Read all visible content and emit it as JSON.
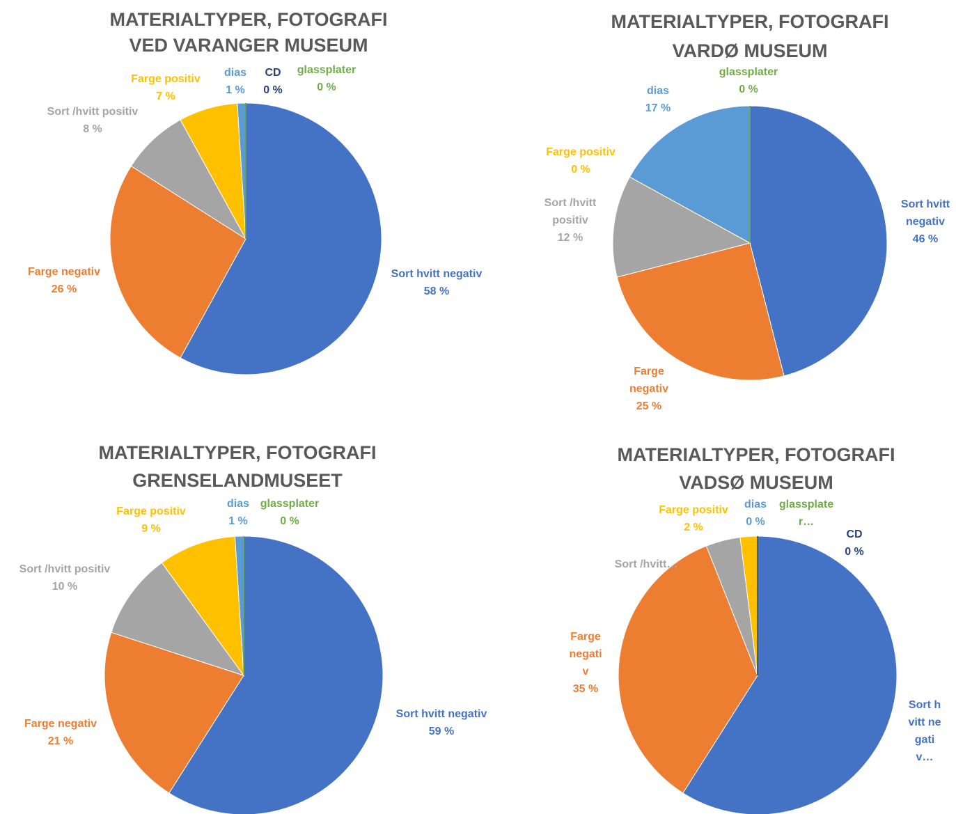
{
  "chart_data": [
    {
      "type": "pie",
      "title": [
        "MATERIALTYPER, FOTOGRAFI",
        "VED VARANGER MUSEUM"
      ],
      "categories": [
        "Sort hvitt negativ",
        "Farge negativ",
        "Sort /hvitt positiv",
        "Farge positiv",
        "dias",
        "CD",
        "glassplater"
      ],
      "values": [
        58,
        26,
        8,
        7,
        1,
        0,
        0
      ],
      "value_labels": [
        "58 %",
        "26 %",
        "8 %",
        "7 %",
        "1 %",
        "0 %",
        "0 %"
      ],
      "colors": [
        "#4472c4",
        "#ed7d31",
        "#a5a5a5",
        "#ffc000",
        "#5b9bd5",
        "#264478",
        "#70ad47"
      ]
    },
    {
      "type": "pie",
      "title": [
        "MATERIALTYPER, FOTOGRAFI",
        "VARDØ MUSEUM"
      ],
      "categories": [
        "Sort hvitt negativ",
        "Farge negativ",
        "Sort /hvitt positiv",
        "Farge positiv",
        "dias",
        "glassplater"
      ],
      "values": [
        46,
        25,
        12,
        0,
        17,
        0
      ],
      "value_labels": [
        "46 %",
        "25 %",
        "12 %",
        "0 %",
        "17 %",
        "0 %"
      ],
      "colors": [
        "#4472c4",
        "#ed7d31",
        "#a5a5a5",
        "#ffc000",
        "#5b9bd5",
        "#70ad47"
      ]
    },
    {
      "type": "pie",
      "title": [
        "MATERIALTYPER, FOTOGRAFI",
        "GRENSELANDMUSEET"
      ],
      "categories": [
        "Sort hvitt negativ",
        "Farge negativ",
        "Sort /hvitt positiv",
        "Farge positiv",
        "dias",
        "glassplater"
      ],
      "values": [
        59,
        21,
        10,
        9,
        1,
        0
      ],
      "value_labels": [
        "59 %",
        "21 %",
        "10 %",
        "9 %",
        "1 %",
        "0 %"
      ],
      "colors": [
        "#4472c4",
        "#ed7d31",
        "#a5a5a5",
        "#ffc000",
        "#5b9bd5",
        "#70ad47"
      ]
    },
    {
      "type": "pie",
      "title": [
        "MATERIALTYPER, FOTOGRAFI",
        "VADSØ MUSEUM"
      ],
      "categories": [
        "Sort hvitt negativ…",
        "Farge negativ",
        "Sort /hvitt…",
        "Farge positiv",
        "dias",
        "glassplater…",
        "CD"
      ],
      "values": [
        59,
        35,
        4,
        2,
        0,
        0,
        0
      ],
      "value_labels": [
        null,
        "35 %",
        null,
        "2 %",
        "0 %",
        null,
        "0 %"
      ],
      "colors": [
        "#4472c4",
        "#ed7d31",
        "#a5a5a5",
        "#ffc000",
        "#5b9bd5",
        "#70ad47",
        "#264478"
      ]
    }
  ]
}
